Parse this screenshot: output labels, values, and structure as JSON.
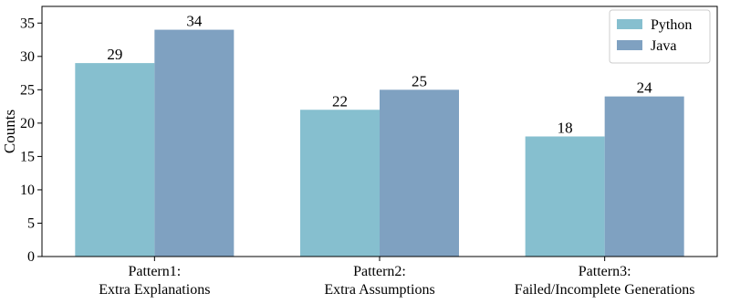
{
  "chart_data": {
    "type": "bar",
    "categories": [
      [
        "Pattern1:",
        "Extra Explanations"
      ],
      [
        "Pattern2:",
        "Extra Assumptions"
      ],
      [
        "Pattern3:",
        "Failed/Incomplete Generations"
      ]
    ],
    "series": [
      {
        "name": "Python",
        "values": [
          29,
          22,
          18
        ],
        "color": "#86bfcf"
      },
      {
        "name": "Java",
        "values": [
          34,
          25,
          24
        ],
        "color": "#7fa1c1"
      }
    ],
    "title": "",
    "xlabel": "",
    "ylabel": "Counts",
    "ylim": [
      0,
      37.5
    ],
    "yticks": [
      0,
      5,
      10,
      15,
      20,
      25,
      30,
      35
    ],
    "grid": false,
    "legend": "top-right",
    "show_value_labels": true
  }
}
